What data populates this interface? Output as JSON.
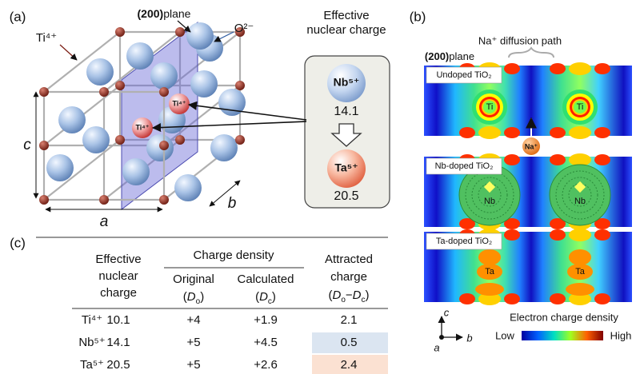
{
  "panel_a": {
    "label": "(a)",
    "plane_label": {
      "miller": "(200)",
      "word": "plane"
    },
    "oxygen_label": "O²⁻",
    "titanium_label": "Ti⁴⁺",
    "atom_labels": [
      "Ti⁴⁺",
      "Ti⁴⁺"
    ],
    "axes": {
      "a": "a",
      "b": "b",
      "c": "c"
    },
    "effective_charge_box": {
      "title": [
        "Effective",
        "nuclear charge"
      ],
      "top": {
        "ion": "Nb⁵⁺",
        "value": 14.1
      },
      "bottom": {
        "ion": "Ta⁵⁺",
        "value": 20.5
      }
    }
  },
  "panel_b": {
    "label": "(b)",
    "path_label": "Na⁺ diffusion path",
    "plane_label": {
      "miller": "(200)",
      "word": "plane"
    },
    "maps": [
      {
        "title": "Undoped TiO₂",
        "atom": "Ti"
      },
      {
        "title": "Nb-doped TiO₂",
        "atom": "Nb"
      },
      {
        "title": "Ta-doped TiO₂",
        "atom": "Ta"
      }
    ],
    "ion": "Na⁺",
    "axes": {
      "c": "c",
      "a": "a",
      "b": "b"
    },
    "colorbar": {
      "title": "Electron charge density",
      "low": "Low",
      "high": "High"
    }
  },
  "panel_c": {
    "label": "(c)",
    "table": {
      "header": {
        "nuclear": [
          "Effective",
          "nuclear",
          "charge"
        ],
        "density": "Charge density",
        "original": {
          "name": "Original",
          "open": "(",
          "symbol": "D",
          "sub": "o",
          "close": ")"
        },
        "calculated": {
          "name": "Calculated",
          "open": "(",
          "symbol": "D",
          "sub": "c",
          "close": ")"
        },
        "attracted": {
          "lines": [
            "Attracted",
            "charge"
          ],
          "open": "(",
          "symbol1": "D",
          "sub1": "o",
          "minus": "−",
          "symbol2": "D",
          "sub2": "c",
          "close": ")"
        }
      },
      "rows": [
        {
          "ion": "Ti⁴⁺",
          "nuclear": 10.1,
          "original": "+4",
          "calculated": "+1.9",
          "attracted": 2.1
        },
        {
          "ion": "Nb⁵⁺",
          "nuclear": 14.1,
          "original": "+5",
          "calculated": "+4.5",
          "attracted": 0.5
        },
        {
          "ion": "Ta⁵⁺",
          "nuclear": 20.5,
          "original": "+5",
          "calculated": "+2.6",
          "attracted": 2.4
        }
      ]
    }
  }
}
